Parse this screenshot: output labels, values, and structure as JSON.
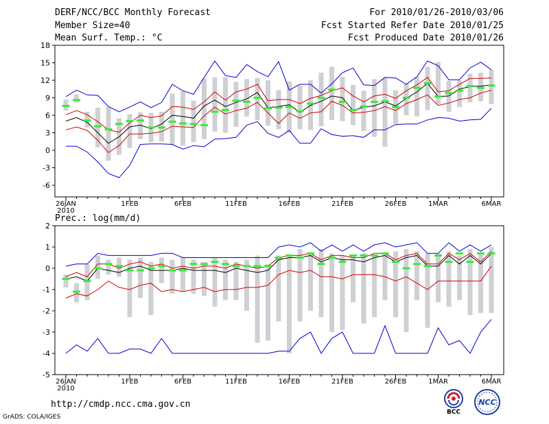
{
  "header": {
    "title": "DERF/NCC/BCC Monthly Forecast",
    "member_size": "Member Size=40",
    "variable": "Mean Surf. Temp.: °C",
    "forecast_range": "For 2010/01/26-2010/03/06",
    "refer_date": "Fcst Started Refer Date 2010/01/25",
    "produced_date": "Fcst Produced Date 2010/01/26"
  },
  "footer": {
    "url": "http://cmdp.ncc.cma.gov.cn",
    "credit": "GrADS: COLA/IGES",
    "logo_bcc_text": "BCC",
    "logo_ncc_text": "NCC"
  },
  "colors": {
    "max_min": "#0000cc",
    "spread": "#cc0000",
    "mean": "#000000",
    "member": "#33ee33",
    "box": "#d0d0d4"
  },
  "chart_data": [
    {
      "type": "line",
      "name": "temperature",
      "title": "Mean Surf. Temp.: °C",
      "xlabel": "",
      "ylabel": "",
      "x_tick_labels": [
        "26JAN",
        "1FEB",
        "6FEB",
        "11FEB",
        "16FEB",
        "21FEB",
        "26FEB",
        "1MAR",
        "6MAR"
      ],
      "x_tick_days": [
        0,
        6,
        11,
        16,
        21,
        26,
        31,
        35,
        40
      ],
      "x_year_label": "2010",
      "ylim": [
        -8,
        18
      ],
      "y_ticks": [
        -6,
        -3,
        0,
        3,
        6,
        9,
        12,
        15,
        18
      ],
      "days": 41,
      "series": [
        {
          "name": "max",
          "values": [
            9.2,
            10.3,
            9.5,
            9.4,
            7.5,
            6.6,
            7.4,
            8.3,
            7.3,
            8.2,
            11.3,
            10.2,
            9.6,
            12.5,
            15.3,
            12.8,
            12.5,
            14.7,
            13.5,
            12.6,
            15.2,
            10.3,
            11.3,
            11.3,
            9.8,
            11.4,
            13.3,
            14.1,
            11.2,
            11.1,
            12.5,
            12.4,
            11.3,
            12.6,
            15.3,
            14.5,
            12.1,
            12.1,
            14.1,
            15.1,
            13.8
          ]
        },
        {
          "name": "upper",
          "values": [
            6.1,
            6.8,
            6.1,
            4.9,
            3.5,
            3.1,
            4.7,
            6.0,
            5.6,
            5.9,
            7.5,
            7.4,
            7.0,
            8.3,
            10.0,
            8.6,
            10.0,
            10.5,
            11.3,
            8.5,
            8.7,
            8.7,
            8.0,
            8.9,
            9.4,
            10.2,
            10.7,
            9.3,
            8.3,
            9.3,
            9.6,
            8.9,
            10.2,
            11.2,
            12.5,
            10.0,
            10.2,
            11.3,
            12.3,
            12.3,
            12.4
          ]
        },
        {
          "name": "mean",
          "values": [
            5.0,
            5.6,
            4.8,
            3.0,
            1.2,
            2.3,
            4.0,
            4.3,
            3.7,
            4.5,
            6.0,
            5.8,
            5.5,
            7.6,
            8.6,
            7.5,
            8.2,
            8.8,
            9.9,
            7.3,
            7.5,
            7.8,
            6.5,
            7.7,
            8.4,
            9.3,
            9.0,
            6.8,
            7.4,
            7.6,
            8.3,
            7.6,
            8.9,
            10.0,
            11.5,
            9.2,
            9.3,
            10.5,
            10.9,
            11.0,
            11.2
          ]
        },
        {
          "name": "lower",
          "values": [
            3.5,
            4.0,
            3.4,
            1.7,
            -0.4,
            0.8,
            2.8,
            2.8,
            2.9,
            3.2,
            4.1,
            4.0,
            3.9,
            5.9,
            7.4,
            6.2,
            6.8,
            7.2,
            8.2,
            6.4,
            4.6,
            6.4,
            5.5,
            6.4,
            6.6,
            8.4,
            7.7,
            6.4,
            6.5,
            6.8,
            7.5,
            6.8,
            8.0,
            8.7,
            9.5,
            7.7,
            8.1,
            8.7,
            9.0,
            9.8,
            10.3
          ]
        },
        {
          "name": "min",
          "values": [
            0.7,
            0.7,
            -0.3,
            -2.0,
            -4.0,
            -4.7,
            -2.6,
            1.0,
            1.1,
            1.1,
            1.0,
            0.2,
            0.8,
            0.6,
            1.9,
            2.0,
            2.2,
            4.3,
            4.9,
            2.9,
            2.2,
            3.4,
            1.2,
            1.2,
            3.7,
            2.7,
            2.4,
            2.5,
            2.2,
            3.5,
            3.5,
            4.4,
            4.5,
            4.5,
            5.2,
            5.6,
            5.5,
            5.0,
            5.2,
            5.3,
            7.2
          ]
        }
      ],
      "boxes_low": [
        6.8,
        8.2,
        3.9,
        0.5,
        -1.8,
        -0.8,
        0.4,
        1.9,
        1.4,
        1.5,
        1.0,
        0.8,
        1.4,
        1.9,
        3.2,
        3.0,
        4.0,
        5.8,
        5.1,
        4.2,
        3.6,
        3.0,
        3.6,
        3.5,
        4.1,
        5.2,
        5.0,
        4.3,
        3.3,
        2.3,
        0.6,
        4.5,
        6.0,
        5.8,
        6.9,
        7.9,
        6.6,
        7.4,
        8.2,
        8.4,
        7.9
      ],
      "boxes_high": [
        8.7,
        9.6,
        6.6,
        7.3,
        7.4,
        5.5,
        6.2,
        6.5,
        6.4,
        6.6,
        9.7,
        10.1,
        8.5,
        12.3,
        12.5,
        12.5,
        11.7,
        12.2,
        12.4,
        12.0,
        10.3,
        11.8,
        11.1,
        12.0,
        13.3,
        14.3,
        12.6,
        11.2,
        10.2,
        12.2,
        12.4,
        10.3,
        11.5,
        12.6,
        14.3,
        15.1,
        11.9,
        12.0,
        13.1,
        13.3,
        13.8
      ],
      "member_marks": [
        7.6,
        8.6,
        5.1,
        4.1,
        3.6,
        4.5,
        5.0,
        5.1,
        3.9,
        3.9,
        4.9,
        4.6,
        4.5,
        4.3,
        6.6,
        6.9,
        8.5,
        8.3,
        9.0,
        7.2,
        7.3,
        7.4,
        6.7,
        8.0,
        9.0,
        10.4,
        8.3,
        6.9,
        7.5,
        8.3,
        8.4,
        7.4,
        9.0,
        10.7,
        11.5,
        9.2,
        9.8,
        10.2,
        11.0,
        10.7,
        11.1
      ]
    },
    {
      "type": "line",
      "name": "precipitation",
      "title": "Prec.: log(mm/d)",
      "xlabel": "",
      "ylabel": "",
      "x_tick_labels": [
        "26JAN",
        "1FEB",
        "6FEB",
        "11FEB",
        "16FEB",
        "21FEB",
        "26FEB",
        "1MAR",
        "6MAR"
      ],
      "x_tick_days": [
        0,
        6,
        11,
        16,
        21,
        26,
        31,
        35,
        40
      ],
      "x_year_label": "2010",
      "ylim": [
        -5,
        2
      ],
      "y_ticks": [
        -5,
        -4,
        -3,
        -2,
        -1,
        0,
        1,
        2
      ],
      "days": 41,
      "series": [
        {
          "name": "max",
          "values": [
            0.1,
            0.2,
            0.2,
            0.7,
            0.6,
            0.6,
            0.6,
            0.6,
            0.6,
            0.7,
            0.7,
            0.5,
            0.5,
            0.5,
            0.5,
            0.5,
            0.5,
            0.5,
            0.5,
            0.5,
            1.0,
            1.1,
            1.0,
            1.2,
            0.8,
            1.1,
            0.8,
            1.1,
            0.8,
            1.1,
            1.2,
            1.0,
            1.1,
            1.2,
            0.7,
            0.7,
            1.2,
            0.8,
            1.1,
            0.8,
            1.1
          ]
        },
        {
          "name": "upper",
          "values": [
            -0.4,
            -0.2,
            -0.4,
            0.2,
            0.2,
            0.0,
            0.2,
            0.3,
            0.1,
            0.2,
            0.0,
            0.1,
            0.0,
            0.1,
            0.1,
            0.0,
            0.2,
            0.1,
            0.0,
            0.1,
            0.5,
            0.6,
            0.6,
            0.7,
            0.4,
            0.6,
            0.6,
            0.5,
            0.5,
            0.7,
            0.7,
            0.4,
            0.6,
            0.7,
            0.2,
            0.2,
            0.7,
            0.4,
            0.7,
            0.3,
            0.8
          ]
        },
        {
          "name": "mean",
          "values": [
            -0.5,
            -0.4,
            -0.6,
            0.0,
            -0.1,
            -0.2,
            0.0,
            0.1,
            -0.1,
            -0.1,
            -0.1,
            0.0,
            -0.1,
            -0.1,
            -0.1,
            -0.2,
            0.0,
            -0.1,
            -0.2,
            -0.1,
            0.4,
            0.5,
            0.5,
            0.6,
            0.3,
            0.5,
            0.4,
            0.4,
            0.3,
            0.5,
            0.6,
            0.3,
            0.5,
            0.6,
            0.1,
            0.1,
            0.6,
            0.2,
            0.6,
            0.2,
            0.7
          ]
        },
        {
          "name": "lower",
          "values": [
            -1.4,
            -1.2,
            -1.3,
            -1.0,
            -0.6,
            -0.9,
            -1.0,
            -0.8,
            -0.7,
            -1.1,
            -1.0,
            -1.1,
            -1.0,
            -0.9,
            -1.1,
            -1.0,
            -1.0,
            -0.9,
            -0.9,
            -0.8,
            -0.3,
            -0.1,
            -0.2,
            -0.1,
            -0.4,
            -0.4,
            -0.5,
            -0.3,
            -0.3,
            -0.3,
            -0.4,
            -0.6,
            -0.4,
            -0.7,
            -1.0,
            -0.6,
            -0.6,
            -0.6,
            -0.6,
            -0.6,
            0.1
          ]
        },
        {
          "name": "min",
          "values": [
            -4.0,
            -3.6,
            -3.9,
            -3.3,
            -4.0,
            -4.0,
            -3.8,
            -3.8,
            -4.0,
            -3.3,
            -4.0,
            -4.0,
            -4.0,
            -4.0,
            -4.0,
            -4.0,
            -4.0,
            -4.0,
            -4.0,
            -4.0,
            -3.9,
            -3.9,
            -3.3,
            -3.0,
            -4.0,
            -3.3,
            -3.0,
            -4.0,
            -4.0,
            -4.0,
            -2.7,
            -4.0,
            -4.0,
            -4.0,
            -4.0,
            -2.8,
            -3.6,
            -3.4,
            -4.0,
            -3.0,
            -2.4
          ]
        }
      ],
      "boxes_low": [
        -0.9,
        -1.6,
        -1.5,
        -0.5,
        -0.3,
        -0.4,
        -2.3,
        -1.4,
        -2.2,
        -0.7,
        -1.2,
        -1.1,
        -1.2,
        -1.3,
        -1.8,
        -1.5,
        -1.5,
        -2.0,
        -3.5,
        -3.4,
        -2.5,
        -4.0,
        -2.5,
        -2.0,
        -2.3,
        -3.0,
        -2.9,
        -1.6,
        -2.6,
        -2.3,
        -1.5,
        -2.3,
        -3.0,
        -1.5,
        -2.8,
        -1.6,
        -1.8,
        -1.5,
        -2.2,
        -2.1,
        -2.1
      ],
      "boxes_high": [
        -0.3,
        -0.7,
        0.2,
        0.6,
        0.4,
        0.5,
        0.4,
        0.5,
        0.3,
        0.5,
        0.4,
        0.5,
        0.4,
        0.3,
        0.5,
        0.4,
        0.3,
        0.4,
        0.6,
        0.2,
        0.6,
        0.6,
        0.9,
        0.7,
        0.9,
        0.7,
        0.6,
        0.6,
        0.7,
        0.6,
        0.7,
        0.8,
        0.9,
        0.8,
        0.7,
        0.7,
        0.8,
        0.6,
        0.9,
        0.7,
        1.0
      ],
      "member_marks": [
        -0.5,
        -1.1,
        -0.6,
        0.0,
        0.2,
        0.1,
        -0.1,
        -0.1,
        0.0,
        0.1,
        -0.1,
        -0.1,
        0.2,
        0.2,
        0.3,
        0.2,
        0.1,
        0.1,
        0.1,
        0.1,
        0.5,
        0.6,
        0.5,
        0.7,
        0.2,
        0.5,
        0.3,
        0.6,
        0.6,
        0.6,
        0.7,
        0.3,
        0.0,
        0.2,
        0.1,
        0.6,
        0.3,
        0.7,
        0.3,
        0.7,
        0.7
      ]
    }
  ]
}
